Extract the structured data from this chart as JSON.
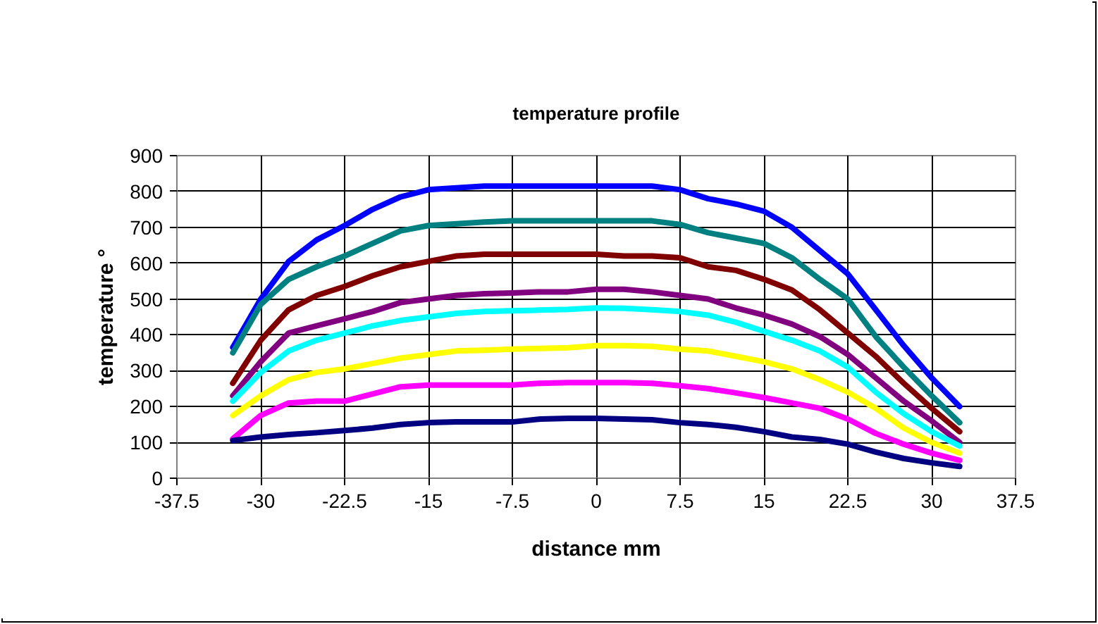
{
  "chart_data": {
    "type": "line",
    "title": "temperature profile",
    "xlabel": "distance mm",
    "ylabel": "temperature °",
    "x": [
      -32.5,
      -30,
      -27.5,
      -25,
      -22.5,
      -20,
      -17.5,
      -15,
      -12.5,
      -10,
      -7.5,
      -5,
      -2.5,
      0,
      2.5,
      5,
      7.5,
      10,
      12.5,
      15,
      17.5,
      20,
      22.5,
      25,
      27.5,
      30,
      32.5
    ],
    "series": [
      {
        "color": "#0000ff",
        "values": [
          365,
          500,
          605,
          665,
          705,
          750,
          785,
          805,
          810,
          815,
          815,
          815,
          815,
          815,
          815,
          815,
          805,
          780,
          765,
          745,
          700,
          635,
          570,
          470,
          370,
          280,
          200
        ]
      },
      {
        "color": "#008080",
        "values": [
          350,
          485,
          555,
          590,
          620,
          655,
          690,
          705,
          710,
          715,
          718,
          718,
          718,
          718,
          718,
          718,
          708,
          685,
          670,
          655,
          615,
          555,
          500,
          395,
          310,
          230,
          155
        ]
      },
      {
        "color": "#800000",
        "values": [
          265,
          385,
          470,
          510,
          535,
          565,
          590,
          605,
          620,
          625,
          625,
          625,
          625,
          625,
          620,
          620,
          615,
          590,
          580,
          555,
          525,
          470,
          405,
          340,
          265,
          195,
          130
        ]
      },
      {
        "color": "#800080",
        "values": [
          230,
          325,
          405,
          425,
          445,
          465,
          490,
          500,
          510,
          515,
          517,
          520,
          520,
          527,
          527,
          520,
          510,
          500,
          475,
          455,
          430,
          395,
          345,
          280,
          215,
          160,
          100
        ]
      },
      {
        "color": "#00ffff",
        "values": [
          215,
          295,
          355,
          385,
          405,
          425,
          440,
          450,
          460,
          465,
          467,
          469,
          471,
          475,
          474,
          470,
          465,
          455,
          435,
          410,
          385,
          355,
          310,
          240,
          180,
          130,
          90
        ]
      },
      {
        "color": "#ffff00",
        "values": [
          175,
          230,
          275,
          295,
          305,
          320,
          335,
          345,
          355,
          357,
          360,
          362,
          364,
          370,
          370,
          368,
          360,
          355,
          340,
          325,
          305,
          275,
          240,
          195,
          140,
          100,
          70
        ]
      },
      {
        "color": "#ff00ff",
        "values": [
          110,
          175,
          210,
          215,
          215,
          235,
          255,
          260,
          260,
          260,
          260,
          265,
          267,
          267,
          267,
          265,
          258,
          250,
          238,
          225,
          210,
          195,
          165,
          125,
          95,
          70,
          50
        ]
      },
      {
        "color": "#000080",
        "values": [
          105,
          115,
          122,
          127,
          133,
          140,
          150,
          155,
          157,
          157,
          157,
          165,
          167,
          167,
          165,
          163,
          155,
          150,
          142,
          130,
          115,
          108,
          95,
          73,
          55,
          43,
          33
        ]
      }
    ],
    "xlim": [
      -37.5,
      37.5
    ],
    "xticks": [
      -37.5,
      -30,
      -22.5,
      -15,
      -7.5,
      0,
      7.5,
      15,
      22.5,
      30,
      37.5
    ],
    "ylim": [
      0,
      900
    ],
    "yticks": [
      0,
      100,
      200,
      300,
      400,
      500,
      600,
      700,
      800,
      900
    ],
    "grid": true,
    "line_style": "solid"
  }
}
